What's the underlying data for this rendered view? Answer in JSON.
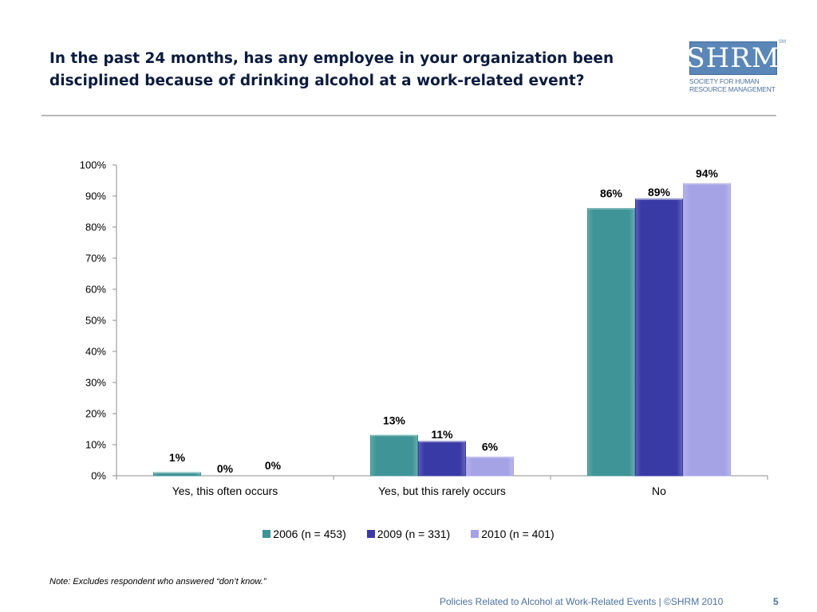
{
  "title": "In the past 24 months, has any employee in your organization been disciplined because of drinking alcohol at a work-related event?",
  "logo": {
    "word": "SHRM",
    "tm": "SM",
    "subtitle_line1": "Society for Human",
    "subtitle_line2": "Resource Management"
  },
  "note": "Note: Excludes respondent who answered “don’t know.”",
  "footer": {
    "text": "Policies Related to Alcohol at Work-Related Events | ©SHRM 2010",
    "page": "5"
  },
  "chart_data": {
    "type": "bar",
    "categories": [
      "Yes, this often occurs",
      "Yes, but this rarely occurs",
      "No"
    ],
    "series": [
      {
        "name": "2006 (n = 453)",
        "values": [
          1,
          13,
          86
        ],
        "labels": [
          "1%",
          "13%",
          "86%"
        ],
        "color": "#3f9497"
      },
      {
        "name": "2009 (n = 331)",
        "values": [
          0,
          11,
          89
        ],
        "labels": [
          "0%",
          "11%",
          "89%"
        ],
        "color": "#3a3aa6"
      },
      {
        "name": "2010 (n = 401)",
        "values": [
          0,
          6,
          94
        ],
        "labels": [
          "0%",
          "6%",
          "94%"
        ],
        "color": "#a5a3e6"
      }
    ],
    "yticks": [
      "0%",
      "10%",
      "20%",
      "30%",
      "40%",
      "50%",
      "60%",
      "70%",
      "80%",
      "90%",
      "100%"
    ],
    "ylim": [
      0,
      100
    ],
    "grid": false,
    "legend_position": "bottom"
  }
}
